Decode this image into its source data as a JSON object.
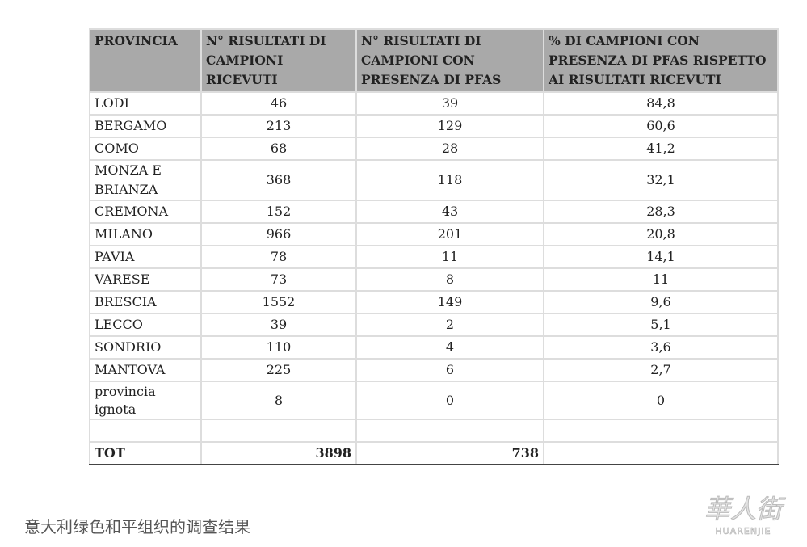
{
  "table": {
    "headers": [
      "PROVINCIA",
      "N° RISULTATI DI CAMPIONI RICEVUTI",
      "N° RISULTATI DI CAMPIONI CON PRESENZA DI PFAS",
      "% DI CAMPIONI CON PRESENZA DI PFAS RISPETTO AI RISULTATI RICEVUTI"
    ],
    "rows": [
      [
        "LODI",
        "46",
        "39",
        "84,8"
      ],
      [
        "BERGAMO",
        "213",
        "129",
        "60,6"
      ],
      [
        "COMO",
        "68",
        "28",
        "41,2"
      ],
      [
        "MONZA E BRIANZA",
        "368",
        "118",
        "32,1"
      ],
      [
        "CREMONA",
        "152",
        "43",
        "28,3"
      ],
      [
        "MILANO",
        "966",
        "201",
        "20,8"
      ],
      [
        "PAVIA",
        "78",
        "11",
        "14,1"
      ],
      [
        "VARESE",
        "73",
        "8",
        "11"
      ],
      [
        "BRESCIA",
        "1552",
        "149",
        "9,6"
      ],
      [
        "LECCO",
        "39",
        "2",
        "5,1"
      ],
      [
        "SONDRIO",
        "110",
        "4",
        "3,6"
      ],
      [
        "MANTOVA",
        "225",
        "6",
        "2,7"
      ],
      [
        "provincia ignota",
        "8",
        "0",
        "0"
      ]
    ],
    "total": [
      "TOT",
      "3898",
      "738",
      ""
    ]
  },
  "caption": "意大利绿色和平组织的调查结果",
  "watermark": {
    "logo": "华人街",
    "text": "HUARENJIE"
  }
}
